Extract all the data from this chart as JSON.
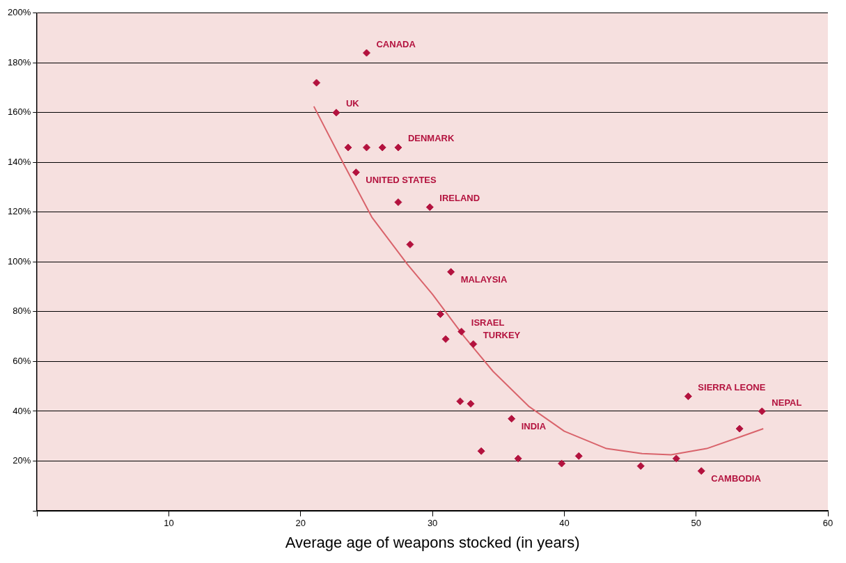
{
  "chart_data": {
    "type": "scatter",
    "xlabel": "Average age of weapons stocked (in years)",
    "xlim": [
      0,
      60
    ],
    "xticks": [
      {
        "value": 0,
        "label": null
      },
      10,
      20,
      30,
      40,
      50,
      60
    ],
    "ylim": [
      0,
      200
    ],
    "yticks": [
      {
        "value": 0,
        "label": null
      },
      {
        "value": 20,
        "label": "20%"
      },
      {
        "value": 40,
        "label": "40%"
      },
      {
        "value": 60,
        "label": "60%"
      },
      {
        "value": 80,
        "label": "80%"
      },
      {
        "value": 100,
        "label": "100%"
      },
      {
        "value": 120,
        "label": "120%"
      },
      {
        "value": 140,
        "label": "140%"
      },
      {
        "value": 160,
        "label": "160%"
      },
      {
        "value": 180,
        "label": "180%"
      },
      {
        "value": 200,
        "label": "200%"
      }
    ],
    "grid": "y",
    "legend": false,
    "marker": "diamond",
    "series": [
      {
        "type": "scatter",
        "color": "#b3123e",
        "x": [
          25.0,
          21.2,
          22.7,
          23.6,
          25.0,
          26.2,
          27.4,
          24.2,
          27.4,
          29.8,
          28.3,
          31.4,
          30.6,
          32.2,
          31.0,
          33.1,
          32.1,
          32.9,
          36.0,
          33.7,
          36.5,
          39.8,
          41.1,
          45.8,
          48.5,
          49.4,
          50.4,
          53.3,
          55.0
        ],
        "values": [
          184,
          172,
          160,
          146,
          146,
          146,
          146,
          136,
          124,
          122,
          107,
          96,
          79,
          72,
          69,
          67,
          44,
          43,
          37,
          24,
          21,
          19,
          22,
          18,
          21,
          46,
          16,
          33,
          40
        ]
      },
      {
        "type": "line",
        "color": "#d9636b",
        "marker": "none",
        "x": [
          21.0,
          23.3,
          25.4,
          28.1,
          30.0,
          32.4,
          34.6,
          37.3,
          40.0,
          43.2,
          45.9,
          48.1,
          50.8,
          53.5,
          55.1
        ],
        "values": [
          162.5,
          139,
          118,
          99,
          87,
          70,
          56,
          42,
          32,
          25,
          23,
          22.5,
          25,
          30,
          33
        ]
      }
    ],
    "annotations": [
      {
        "text": "CANADA",
        "x": 25.0,
        "y": 184
      },
      {
        "text": "UK",
        "x": 22.7,
        "y": 160
      },
      {
        "text": "DENMARK",
        "x": 27.4,
        "y": 146
      },
      {
        "text": "UNITED STATES",
        "x": 24.2,
        "y": 136
      },
      {
        "text": "IRELAND",
        "x": 29.8,
        "y": 122
      },
      {
        "text": "MALAYSIA",
        "x": 31.4,
        "y": 96
      },
      {
        "text": "ISRAEL",
        "x": 32.2,
        "y": 72
      },
      {
        "text": "TURKEY",
        "x": 33.1,
        "y": 67
      },
      {
        "text": "INDIA",
        "x": 36.0,
        "y": 37
      },
      {
        "text": "SIERRA LEONE",
        "x": 49.4,
        "y": 46
      },
      {
        "text": "NEPAL",
        "x": 55.0,
        "y": 40
      },
      {
        "text": "CAMBODIA",
        "x": 50.4,
        "y": 16
      }
    ]
  }
}
